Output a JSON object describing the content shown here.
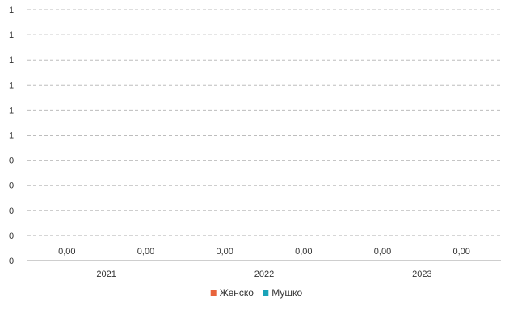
{
  "chart_data": {
    "type": "bar",
    "title": "",
    "xlabel": "",
    "ylabel": "",
    "categories": [
      "2021",
      "2022",
      "2023"
    ],
    "y_tick_labels": [
      "0",
      "0",
      "0",
      "0",
      "0",
      "1",
      "1",
      "1",
      "1",
      "1",
      "1"
    ],
    "ylim": [
      0,
      1
    ],
    "grid": true,
    "legend_position": "bottom",
    "series": [
      {
        "name": "Женско",
        "values": [
          0,
          0,
          0
        ],
        "labels": [
          "0,00",
          "0,00",
          "0,00"
        ],
        "color": "#e8643c"
      },
      {
        "name": "Мушко",
        "values": [
          0,
          0,
          0
        ],
        "labels": [
          "0,00",
          "0,00",
          "0,00"
        ],
        "color": "#1aa3b8"
      }
    ]
  }
}
